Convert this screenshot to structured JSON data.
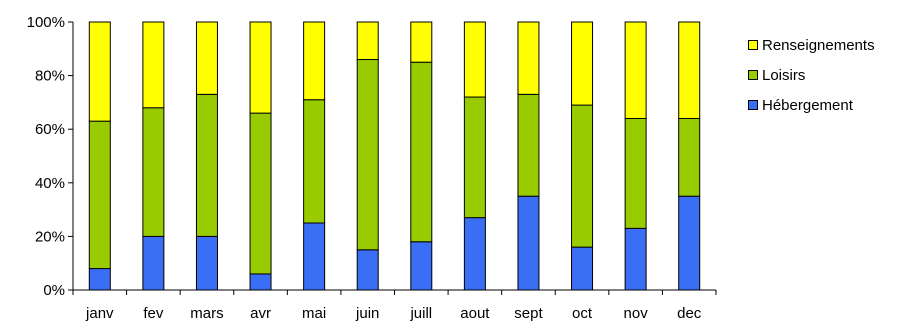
{
  "chart_data": {
    "type": "bar",
    "stacked": true,
    "percent": true,
    "categories": [
      "janv",
      "fev",
      "mars",
      "avr",
      "mai",
      "juin",
      "juill",
      "aout",
      "sept",
      "oct",
      "nov",
      "dec"
    ],
    "series": [
      {
        "name": "Hébergement",
        "color": "#3a6ef5",
        "values": [
          8,
          20,
          20,
          6,
          25,
          15,
          18,
          27,
          35,
          16,
          23,
          35
        ]
      },
      {
        "name": "Loisirs",
        "color": "#99cc00",
        "values": [
          55,
          48,
          53,
          60,
          46,
          71,
          67,
          45,
          38,
          53,
          41,
          29
        ]
      },
      {
        "name": "Renseignements",
        "color": "#ffff00",
        "values": [
          37,
          32,
          27,
          34,
          29,
          14,
          15,
          28,
          27,
          31,
          36,
          36
        ]
      }
    ],
    "yticks": [
      "0%",
      "20%",
      "40%",
      "60%",
      "80%",
      "100%"
    ],
    "ylim": [
      0,
      100
    ],
    "grid": false,
    "legend_position": "right",
    "legend_order": [
      "Renseignements",
      "Loisirs",
      "Hébergement"
    ]
  }
}
